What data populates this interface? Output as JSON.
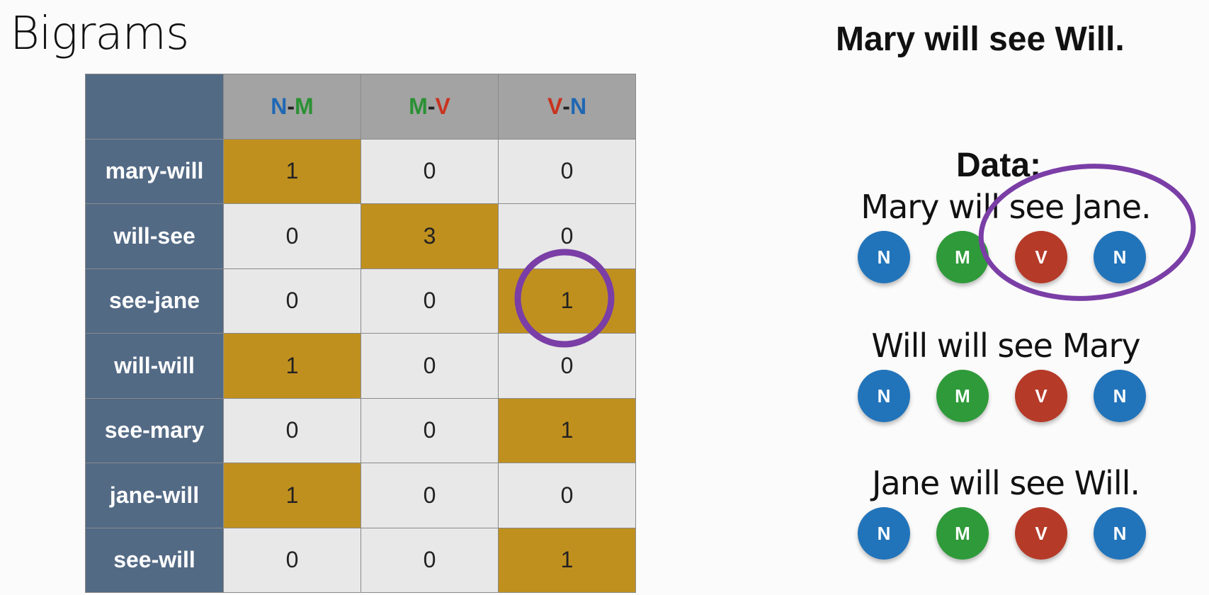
{
  "slide": {
    "title": "Bigrams",
    "sentence": "Mary will see Will.",
    "data_label": "Data:"
  },
  "table": {
    "columns": [
      {
        "label": "N-M",
        "tags": [
          "N",
          "M"
        ]
      },
      {
        "label": "M-V",
        "tags": [
          "M",
          "V"
        ]
      },
      {
        "label": "V-N",
        "tags": [
          "V",
          "N"
        ]
      }
    ],
    "rows": [
      {
        "label": "mary-will",
        "values": [
          "1",
          "0",
          "0"
        ],
        "highlight": 0
      },
      {
        "label": "will-see",
        "values": [
          "0",
          "3",
          "0"
        ],
        "highlight": 1
      },
      {
        "label": "see-jane",
        "values": [
          "0",
          "0",
          "1"
        ],
        "highlight": 2
      },
      {
        "label": "will-will",
        "values": [
          "1",
          "0",
          "0"
        ],
        "highlight": 0
      },
      {
        "label": "see-mary",
        "values": [
          "0",
          "0",
          "1"
        ],
        "highlight": 2
      },
      {
        "label": "jane-will",
        "values": [
          "1",
          "0",
          "0"
        ],
        "highlight": 0
      },
      {
        "label": "see-will",
        "values": [
          "0",
          "0",
          "1"
        ],
        "highlight": 2
      }
    ]
  },
  "examples": [
    {
      "sentence": "Mary will see Jane.",
      "tags": [
        "N",
        "M",
        "V",
        "N"
      ]
    },
    {
      "sentence": "Will will see Mary",
      "tags": [
        "N",
        "M",
        "V",
        "N"
      ]
    },
    {
      "sentence": "Jane will see Will.",
      "tags": [
        "N",
        "M",
        "V",
        "N"
      ]
    }
  ],
  "colors": {
    "N": "#2274ba",
    "M": "#2f9a3a",
    "V": "#b53a28",
    "highlight_cell": "#c0901f",
    "row_header": "#536a85",
    "annotation": "#7a3ea6"
  }
}
